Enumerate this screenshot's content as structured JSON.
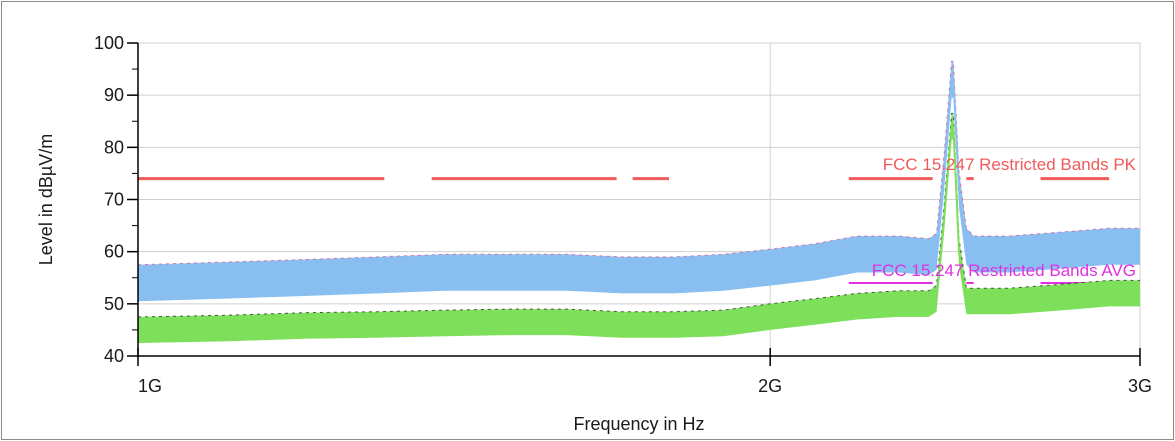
{
  "chart_data": {
    "type": "line",
    "xlabel": "Frequency in Hz",
    "ylabel": "Level in dBµV/m",
    "x_scale": "log",
    "xlim": [
      1000000000,
      3000000000
    ],
    "ylim": [
      40,
      100
    ],
    "x_ticks": [
      {
        "value": 1000000000,
        "label": "1G"
      },
      {
        "value": 2000000000,
        "label": "2G"
      },
      {
        "value": 3000000000,
        "label": "3G"
      }
    ],
    "y_ticks": [
      40,
      50,
      60,
      70,
      80,
      90,
      100
    ],
    "y_tick_labels": [
      "40",
      "50",
      "60",
      "70",
      "80",
      "90",
      "100"
    ],
    "grid": true,
    "limit_lines": [
      {
        "name": "FCC 15.247 Restricted Bands PK",
        "color": "#f05a5a",
        "level": 74,
        "segments": [
          [
            1000000000,
            1310000000
          ],
          [
            1380000000,
            1690000000
          ],
          [
            1720000000,
            1790000000
          ],
          [
            2180000000,
            2390000000
          ],
          [
            2480000000,
            2500000000
          ],
          [
            2690000000,
            2900000000
          ]
        ]
      },
      {
        "name": "FCC 15.247 Restricted Bands AVG",
        "color": "#e030e0",
        "level": 54,
        "segments": [
          [
            1000000000,
            1310000000
          ],
          [
            1380000000,
            1690000000
          ],
          [
            1720000000,
            1790000000
          ],
          [
            2180000000,
            2390000000
          ],
          [
            2480000000,
            2500000000
          ],
          [
            2690000000,
            2900000000
          ]
        ]
      }
    ],
    "series": [
      {
        "color": "#88bff0",
        "edge_color": "#e05a90",
        "band_width": 3.5,
        "x": [
          1000000000,
          1100000000,
          1200000000,
          1300000000,
          1400000000,
          1500000000,
          1600000000,
          1700000000,
          1800000000,
          1900000000,
          2000000000,
          2100000000,
          2200000000,
          2300000000,
          2380000000,
          2400000000,
          2420000000,
          2440000000,
          2445000000,
          2460000000,
          2480000000,
          2500000000,
          2600000000,
          2700000000,
          2800000000,
          2900000000,
          3000000000
        ],
        "values": [
          54,
          54.5,
          55,
          55.5,
          56,
          56,
          56,
          55.5,
          55.5,
          56,
          57,
          58,
          59.5,
          59.5,
          59,
          60,
          75,
          93,
          93,
          72,
          61,
          59.5,
          59.5,
          60,
          60.5,
          61,
          61
        ]
      },
      {
        "color": "#7ee05a",
        "edge_color": "#303030",
        "band_width": 2.5,
        "x": [
          1000000000,
          1100000000,
          1200000000,
          1300000000,
          1400000000,
          1500000000,
          1600000000,
          1700000000,
          1800000000,
          1900000000,
          2000000000,
          2100000000,
          2200000000,
          2300000000,
          2380000000,
          2400000000,
          2420000000,
          2440000000,
          2445000000,
          2460000000,
          2480000000,
          2500000000,
          2600000000,
          2700000000,
          2800000000,
          2900000000,
          3000000000
        ],
        "values": [
          45,
          45.3,
          45.8,
          46,
          46.3,
          46.5,
          46.5,
          46,
          46,
          46.3,
          47.5,
          48.5,
          49.5,
          50,
          50,
          51,
          66,
          84,
          84,
          60,
          50.5,
          50.5,
          50.5,
          51,
          51.5,
          52,
          52
        ]
      }
    ]
  }
}
